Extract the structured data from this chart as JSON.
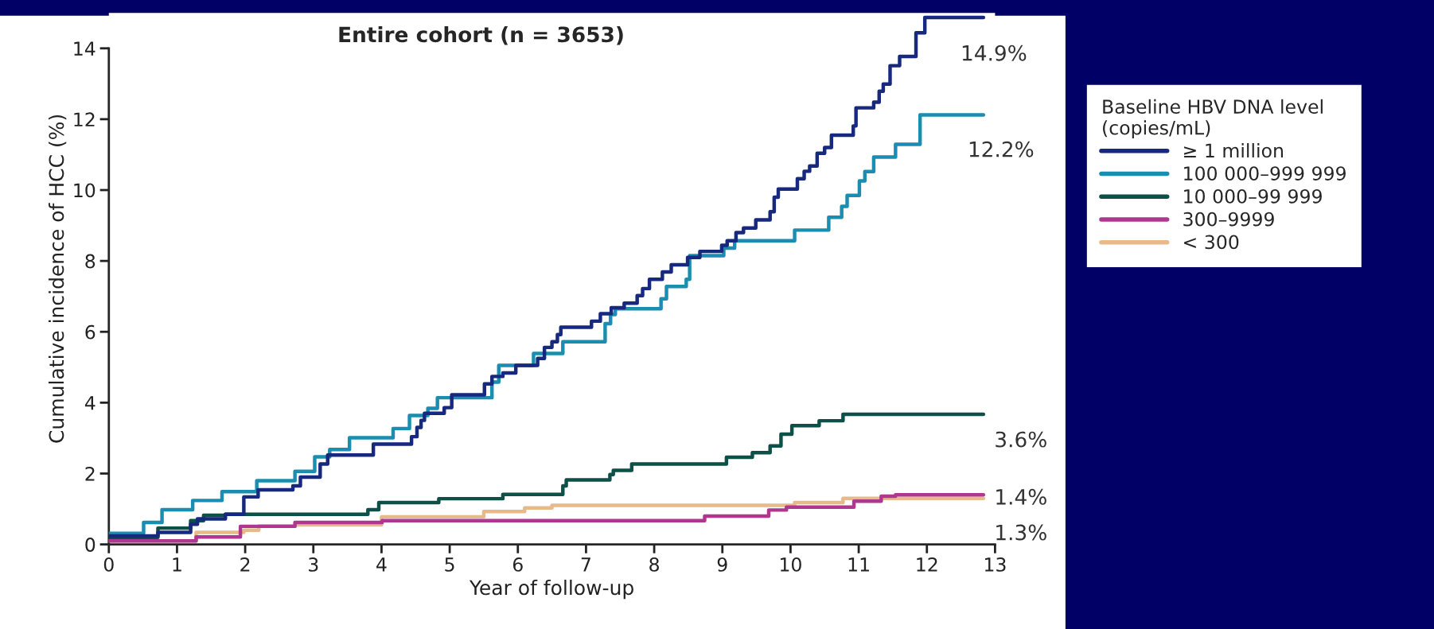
{
  "chart_data": {
    "type": "step",
    "title": "Entire cohort (n = 3653)",
    "xlabel": "Year of follow-up",
    "ylabel": "Cumulative incidence of HCC (%)",
    "legend_title": "Baseline HBV DNA level\n(copies/mL)",
    "legend": "right",
    "grid": false,
    "xlim": [
      0,
      13
    ],
    "xticks": [
      0,
      1,
      2,
      3,
      4,
      5,
      6,
      7,
      8,
      9,
      10,
      11,
      12,
      13
    ],
    "ylim": [
      0,
      15
    ],
    "yticks": [
      0,
      2,
      4,
      6,
      8,
      10,
      12,
      14
    ],
    "series": [
      {
        "name": "≥ 1 million",
        "color": "#17287f",
        "x": [
          0,
          0.72,
          1.2,
          1.3,
          1.71,
          1.98,
          2.19,
          2.7,
          2.81,
          3.1,
          3.21,
          3.88,
          4.44,
          4.52,
          4.58,
          4.63,
          4.92,
          5.03,
          5.51,
          5.62,
          5.78,
          5.97,
          6.29,
          6.39,
          6.5,
          6.58,
          6.63,
          7.08,
          7.21,
          7.37,
          7.56,
          7.75,
          7.83,
          7.93,
          8.12,
          8.25,
          8.49,
          8.67,
          8.99,
          9.07,
          9.2,
          9.31,
          9.49,
          9.7,
          9.76,
          9.82,
          10.1,
          10.2,
          10.28,
          10.39,
          10.5,
          10.6,
          10.92,
          10.96,
          11.22,
          11.3,
          11.36,
          11.46,
          11.6,
          11.84,
          11.97,
          12.83
        ],
        "values": [
          0.24,
          0.34,
          0.57,
          0.72,
          0.85,
          1.34,
          1.54,
          1.65,
          1.9,
          2.27,
          2.52,
          2.83,
          3.04,
          3.3,
          3.5,
          3.7,
          3.86,
          4.22,
          4.53,
          4.74,
          4.84,
          5.05,
          5.25,
          5.56,
          5.72,
          5.92,
          6.13,
          6.3,
          6.51,
          6.68,
          6.81,
          7.02,
          7.22,
          7.48,
          7.69,
          7.89,
          8.1,
          8.27,
          8.44,
          8.57,
          8.8,
          8.93,
          9.16,
          9.39,
          9.8,
          10.03,
          10.32,
          10.53,
          10.68,
          11.04,
          11.2,
          11.55,
          11.81,
          12.32,
          12.48,
          12.79,
          12.99,
          13.51,
          13.77,
          14.44,
          14.87,
          14.87
        ]
      },
      {
        "name": "100 000–999 999",
        "color": "#1a8db0",
        "x": [
          0,
          0.51,
          0.78,
          1.23,
          1.66,
          2.17,
          2.73,
          3.02,
          3.24,
          3.53,
          4.17,
          4.41,
          4.68,
          4.82,
          5.62,
          5.72,
          6.23,
          6.66,
          7.28,
          7.36,
          7.43,
          8.1,
          8.18,
          8.47,
          8.52,
          9.02,
          9.18,
          10.06,
          10.56,
          10.75,
          10.83,
          11.01,
          11.09,
          11.22,
          11.54,
          11.9,
          12.83
        ],
        "values": [
          0.31,
          0.62,
          0.98,
          1.24,
          1.49,
          1.8,
          2.06,
          2.47,
          2.68,
          3.01,
          3.27,
          3.64,
          3.84,
          4.14,
          4.58,
          5.05,
          5.39,
          5.72,
          6.23,
          6.49,
          6.65,
          6.93,
          7.28,
          7.48,
          8.15,
          8.36,
          8.57,
          8.87,
          9.23,
          9.54,
          9.85,
          10.26,
          10.52,
          10.93,
          11.29,
          12.12,
          12.12
        ]
      },
      {
        "name": "10 000–99 999",
        "color": "#0d5048",
        "x": [
          0,
          0.72,
          1.2,
          1.39,
          1.71,
          3.8,
          3.96,
          4.84,
          5.78,
          6.66,
          6.71,
          7.35,
          7.4,
          7.67,
          9.06,
          9.44,
          9.7,
          9.86,
          10.02,
          10.42,
          10.77,
          12.83
        ],
        "values": [
          0.2,
          0.46,
          0.67,
          0.82,
          0.85,
          0.98,
          1.18,
          1.29,
          1.41,
          1.65,
          1.82,
          1.97,
          2.09,
          2.27,
          2.46,
          2.59,
          2.78,
          3.11,
          3.35,
          3.49,
          3.67,
          3.67
        ]
      },
      {
        "name": "300–9999",
        "color": "#b0378f",
        "x": [
          0,
          1.28,
          1.93,
          2.73,
          4.01,
          8.74,
          9.68,
          9.94,
          10.93,
          11.33,
          11.54,
          12.83
        ],
        "values": [
          0.1,
          0.21,
          0.51,
          0.62,
          0.67,
          0.8,
          0.97,
          1.05,
          1.22,
          1.36,
          1.4,
          1.4
        ]
      },
      {
        "name": "< 300",
        "color": "#e8b98a",
        "x": [
          0,
          1.28,
          1.98,
          2.2,
          2.73,
          4.0,
          5.5,
          6.1,
          6.5,
          10.06,
          10.77,
          12.83
        ],
        "values": [
          0.1,
          0.34,
          0.4,
          0.52,
          0.55,
          0.78,
          0.93,
          1.03,
          1.1,
          1.18,
          1.3,
          1.3
        ]
      }
    ],
    "annotations": [
      "14.9%",
      "12.2%",
      "3.6%",
      "1.4%",
      "1.3%"
    ]
  }
}
